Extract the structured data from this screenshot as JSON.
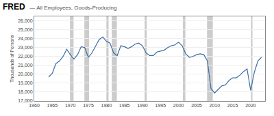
{
  "chart_data": {
    "type": "line",
    "title": "FRED",
    "subtitle": "— All Employees, Goods-Producing",
    "y_label": "Thousands of Persons",
    "x": [
      1964,
      1965,
      1966,
      1967,
      1968,
      1969,
      1970,
      1971,
      1972,
      1973,
      1974,
      1975,
      1976,
      1977,
      1978,
      1979,
      1980,
      1981,
      1982,
      1983,
      1984,
      1985,
      1986,
      1987,
      1988,
      1989,
      1990,
      1991,
      1992,
      1993,
      1994,
      1995,
      1996,
      1997,
      1998,
      1999,
      2000,
      2001,
      2002,
      2003,
      2004,
      2005,
      2006,
      2007,
      2008,
      2009,
      2010,
      2011,
      2012,
      2013,
      2014,
      2015,
      2016,
      2017,
      2018,
      2019,
      2020,
      2021,
      2022,
      2023
    ],
    "values": [
      19700,
      20100,
      21200,
      21500,
      22000,
      22800,
      22200,
      21700,
      22200,
      23100,
      23000,
      21900,
      22400,
      23100,
      23900,
      24200,
      23700,
      23500,
      22400,
      22100,
      23200,
      23100,
      22900,
      23100,
      23400,
      23500,
      23200,
      22400,
      22100,
      22100,
      22500,
      22600,
      22700,
      23000,
      23200,
      23300,
      23600,
      23200,
      22300,
      21900,
      22000,
      22200,
      22300,
      22200,
      21500,
      18400,
      17900,
      18300,
      18700,
      18800,
      19300,
      19600,
      19600,
      19900,
      20300,
      20600,
      18200,
      20200,
      21500,
      21900
    ],
    "color": "#3A6EA5",
    "recessions": [
      [
        1969.9,
        1970.9
      ],
      [
        1973.9,
        1975.2
      ],
      [
        1980.0,
        1980.6
      ],
      [
        1981.5,
        1982.9
      ],
      [
        1990.6,
        1991.2
      ],
      [
        2001.2,
        2001.9
      ],
      [
        2007.9,
        2009.5
      ],
      [
        2020.1,
        2020.5
      ]
    ],
    "recession_color": "#CCCCCC",
    "xlim": [
      1960,
      2024
    ],
    "xticks": [
      1960,
      1965,
      1970,
      1975,
      1980,
      1985,
      1990,
      1995,
      2000,
      2005,
      2010,
      2015,
      2020
    ],
    "ylim": [
      17000,
      26500
    ],
    "yticks": [
      {
        "value": 17000,
        "label": "17,000"
      },
      {
        "value": 18000,
        "label": "18,000"
      },
      {
        "value": 19000,
        "label": "19,000"
      },
      {
        "value": 20000,
        "label": "20,000"
      },
      {
        "value": 21000,
        "label": "21,000"
      },
      {
        "value": 22000,
        "label": "22,000"
      },
      {
        "value": 23000,
        "label": "23,000"
      },
      {
        "value": 24000,
        "label": "24,000"
      },
      {
        "value": 25000,
        "label": "25,000"
      },
      {
        "value": 26000,
        "label": "26,000"
      }
    ],
    "grid": true
  }
}
